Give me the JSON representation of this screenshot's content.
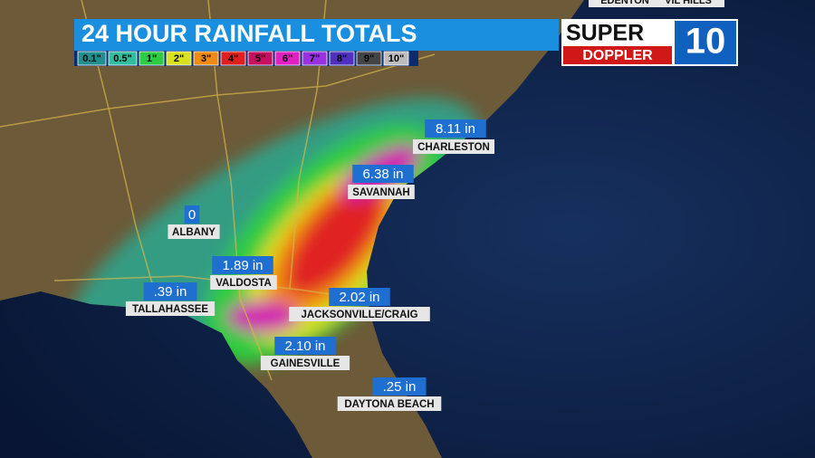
{
  "header": {
    "title": "24 HOUR RAINFALL TOTALS"
  },
  "legend": [
    {
      "label": "0.1\"",
      "color": "#1f8f8f"
    },
    {
      "label": "0.5\"",
      "color": "#2fbfa0"
    },
    {
      "label": "1\"",
      "color": "#2ecc40"
    },
    {
      "label": "2\"",
      "color": "#d8e020"
    },
    {
      "label": "3\"",
      "color": "#f08a10"
    },
    {
      "label": "4\"",
      "color": "#e02020"
    },
    {
      "label": "5\"",
      "color": "#c81060"
    },
    {
      "label": "6\"",
      "color": "#e020c0"
    },
    {
      "label": "7\"",
      "color": "#9a30e0"
    },
    {
      "label": "8\"",
      "color": "#5030c0"
    },
    {
      "label": "9\"",
      "color": "#444444"
    },
    {
      "label": "10\"",
      "color": "#bdbdbd"
    }
  ],
  "logo": {
    "top": "SUPER",
    "bottom": "DOPPLER",
    "number": "10"
  },
  "edge_labels": [
    "EDENTON",
    "VIL HILLS"
  ],
  "cities": [
    {
      "value": "8.11 in",
      "name": "CHARLESTON"
    },
    {
      "value": "6.38 in",
      "name": "SAVANNAH"
    },
    {
      "value": "0",
      "name": "ALBANY"
    },
    {
      "value": "1.89 in",
      "name": "VALDOSTA"
    },
    {
      "value": ".39 in",
      "name": "TALLAHASSEE"
    },
    {
      "value": "2.02 in",
      "name": "JACKSONVILLE/CRAIG"
    },
    {
      "value": "2.10 in",
      "name": "GAINESVILLE"
    },
    {
      "value": ".25 in",
      "name": "DAYTONA BEACH"
    }
  ]
}
